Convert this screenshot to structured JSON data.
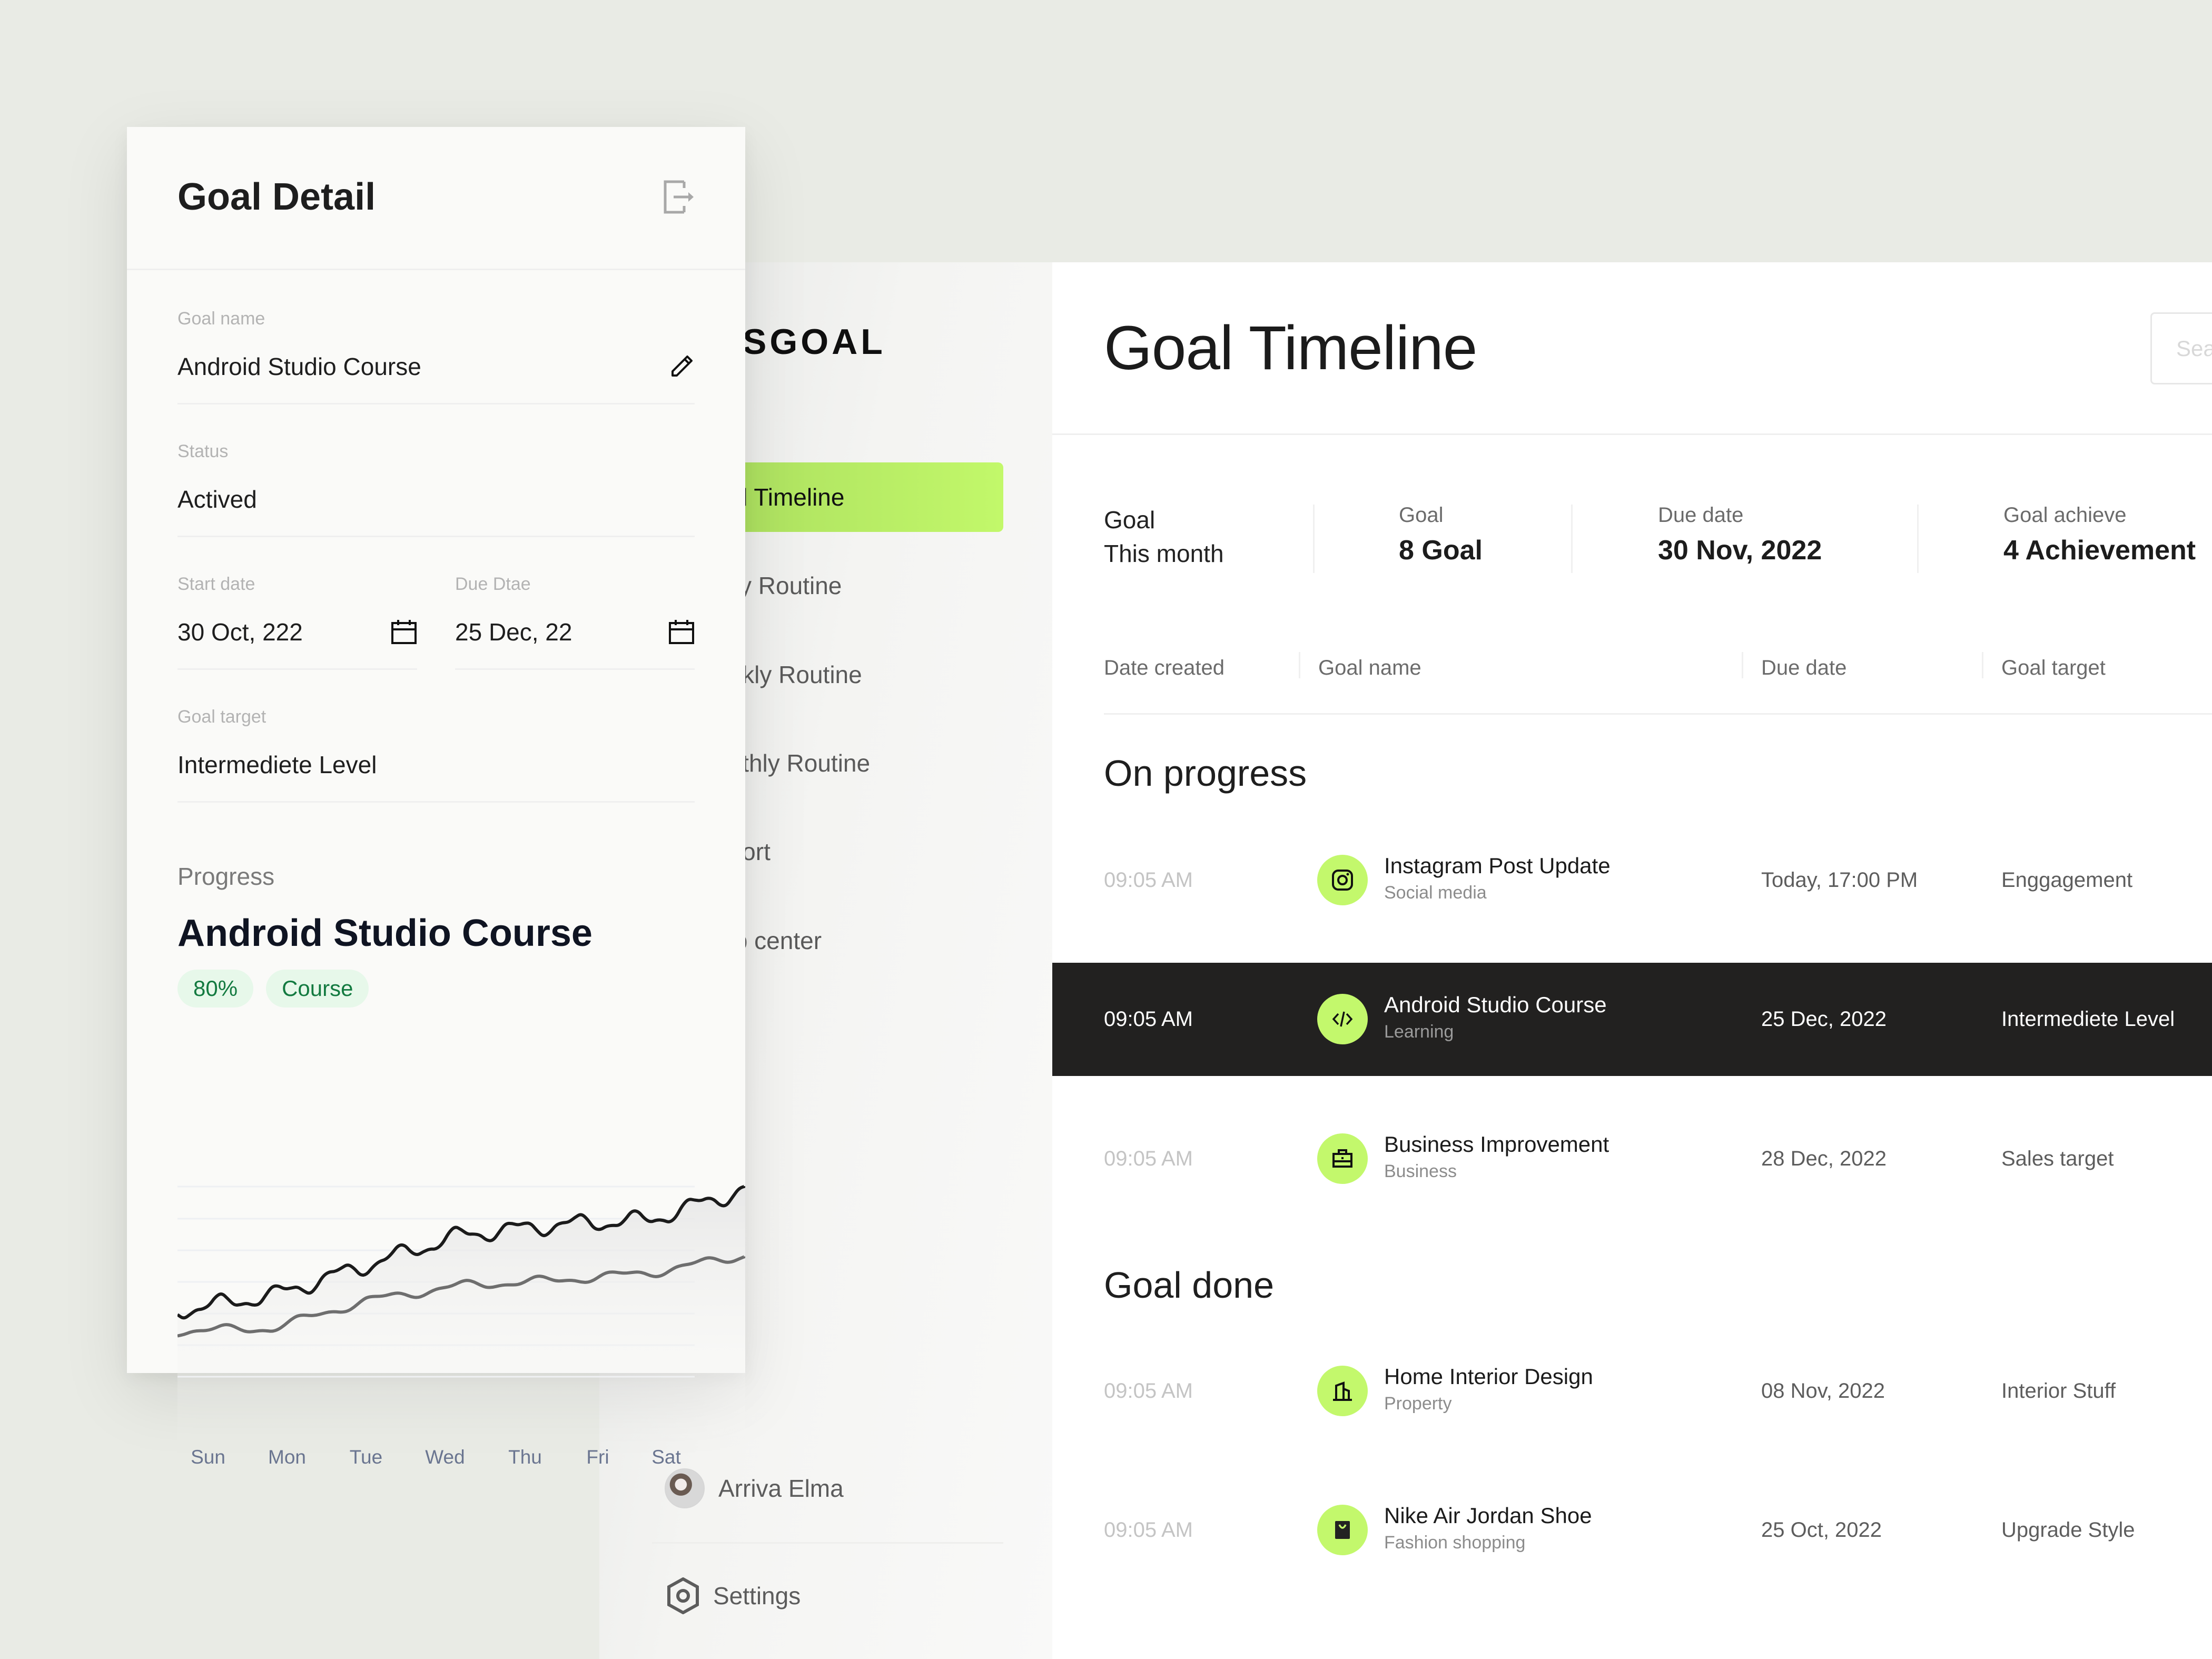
{
  "sidebar": {
    "logo": "SGOAL",
    "nav": [
      {
        "label": "oal Timeline",
        "active": true
      },
      {
        "label": "aily Routine",
        "active": false
      },
      {
        "label": "eekly Routine",
        "active": false
      },
      {
        "label": "onthly Routine",
        "active": false
      },
      {
        "label": "eport",
        "active": false
      },
      {
        "label": "elp center",
        "active": false
      }
    ],
    "user_name": "Arriva Elma",
    "settings_label": "Settings"
  },
  "main": {
    "title": "Goal Timeline",
    "search_placeholder": "Sea",
    "stats": [
      {
        "label": "Goal",
        "value": "This month"
      },
      {
        "label": "Goal",
        "value": "8 Goal"
      },
      {
        "label": "Due date",
        "value": "30 Nov, 2022"
      },
      {
        "label": "Goal achieve",
        "value": "4 Achievement"
      }
    ],
    "columns": [
      "Date created",
      "Goal name",
      "Due date",
      "Goal target"
    ],
    "sections": [
      {
        "title": "On progress",
        "rows": [
          {
            "time": "09:05 AM",
            "icon": "instagram-icon",
            "name": "Instagram Post Update",
            "category": "Social media",
            "due": "Today, 17:00 PM",
            "target": "Enggagement",
            "selected": false
          },
          {
            "time": "09:05 AM",
            "icon": "code-icon",
            "name": "Android Studio Course",
            "category": "Learning",
            "due": "25 Dec, 2022",
            "target": "Intermediete Level",
            "selected": true
          },
          {
            "time": "09:05 AM",
            "icon": "briefcase-icon",
            "name": "Business Improvement",
            "category": "Business",
            "due": "28 Dec, 2022",
            "target": "Sales target",
            "selected": false
          }
        ]
      },
      {
        "title": "Goal done",
        "rows": [
          {
            "time": "09:05 AM",
            "icon": "building-icon",
            "name": "Home Interior Design",
            "category": "Property",
            "due": "08 Nov, 2022",
            "target": "Interior Stuff",
            "selected": false
          },
          {
            "time": "09:05 AM",
            "icon": "shopping-bag-icon",
            "name": "Nike Air Jordan Shoe",
            "category": "Fashion shopping",
            "due": "25 Oct, 2022",
            "target": "Upgrade Style",
            "selected": false
          }
        ]
      }
    ]
  },
  "detail": {
    "title": "Goal Detail",
    "goal_name_label": "Goal name",
    "goal_name_value": "Android Studio Course",
    "status_label": "Status",
    "status_value": "Actived",
    "start_date_label": "Start date",
    "start_date_value": "30 Oct, 222",
    "due_date_label": "Due Dtae",
    "due_date_value": "25 Dec, 22",
    "goal_target_label": "Goal target",
    "goal_target_value": "Intermediete Level",
    "progress_label": "Progress",
    "progress_title": "Android Studio Course",
    "progress_percent": "80%",
    "progress_tag": "Course"
  },
  "colors": {
    "accent": "#c3f86c",
    "selected_row": "#222120",
    "pill_bg": "#e7f8ea",
    "pill_text": "#137a40",
    "background": "#e9ebe5"
  },
  "chart_data": {
    "type": "line",
    "categories": [
      "Sun",
      "Mon",
      "Tue",
      "Wed",
      "Thu",
      "Fri",
      "Sat"
    ],
    "series": [
      {
        "name": "primary",
        "color": "#1b1b1b",
        "values": [
          38,
          44,
          56,
          68,
          72,
          74,
          86
        ]
      },
      {
        "name": "secondary",
        "color": "#6e6e6e",
        "values": [
          30,
          31,
          42,
          48,
          50,
          53,
          60
        ]
      }
    ],
    "title": "",
    "xlabel": "",
    "ylabel": "",
    "ylim": [
      0,
      100
    ],
    "grid": true,
    "legend": "none"
  }
}
